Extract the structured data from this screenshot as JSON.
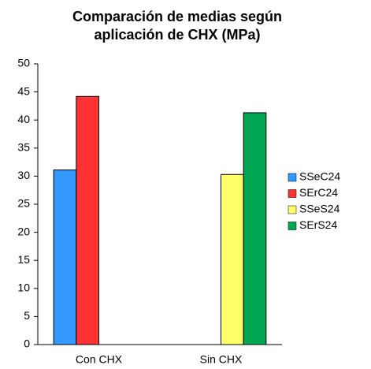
{
  "chart_data": {
    "type": "bar",
    "title": [
      "Comparación de medias según",
      "aplicación de CHX (MPa)"
    ],
    "categories": [
      "Con CHX",
      "Sin CHX"
    ],
    "series": [
      {
        "name": "SSeC24",
        "color": "#3399ff",
        "values": [
          31.1,
          null
        ]
      },
      {
        "name": "SErC24",
        "color": "#ff3333",
        "values": [
          44.2,
          null
        ]
      },
      {
        "name": "SSeS24",
        "color": "#ffff66",
        "values": [
          null,
          30.3
        ]
      },
      {
        "name": "SErS24",
        "color": "#00a651",
        "values": [
          null,
          41.3
        ]
      }
    ],
    "ylim": [
      0,
      50
    ],
    "yticks": [
      0,
      5,
      10,
      15,
      20,
      25,
      30,
      35,
      40,
      45,
      50
    ],
    "grid": false,
    "legend": "right"
  }
}
